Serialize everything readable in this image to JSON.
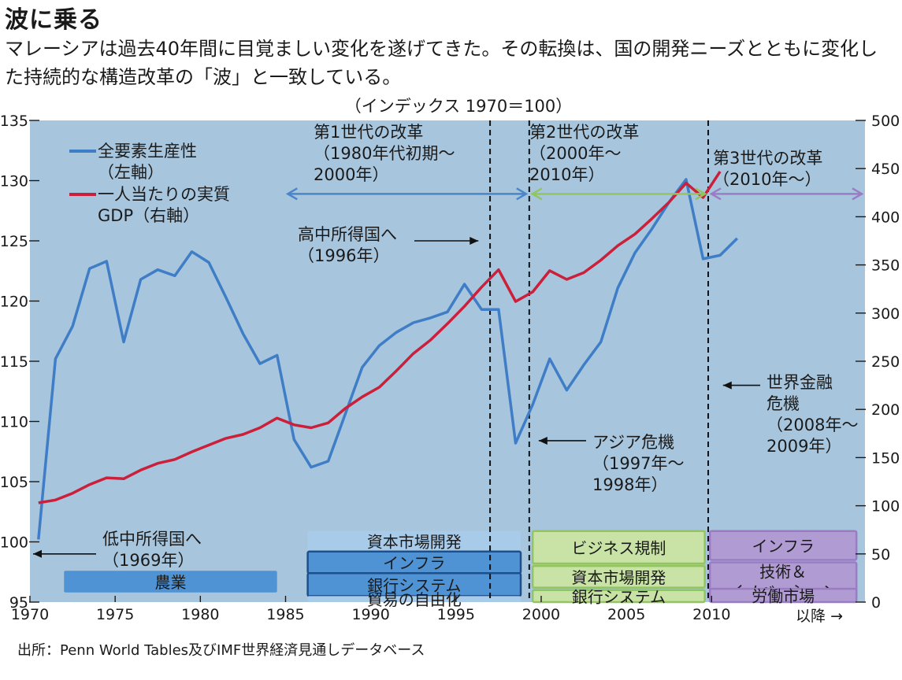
{
  "header": {
    "title": "波に乗る",
    "subtitle": "マレーシアは過去40年間に目覚ましい変化を遂げてきた。その転換は、国の開発ニーズとともに変化した持続的な構造改革の「波」と一致している。"
  },
  "source": "出所：Penn World Tables及びIMF世界経済見通しデータベース",
  "chart_data": {
    "type": "line",
    "unit_label": "（インデックス 1970＝100）",
    "x_ticks": [
      "1970",
      "1975",
      "1980",
      "1985",
      "1990",
      "1995",
      "2000",
      "2005",
      "2010",
      "以降 →"
    ],
    "xlim": [
      1970,
      2019
    ],
    "y_left": {
      "ylim": [
        95,
        135
      ],
      "ticks": [
        "95",
        "100",
        "105",
        "110",
        "115",
        "120",
        "125",
        "130",
        "135"
      ]
    },
    "y_right": {
      "ylim": [
        0,
        500
      ],
      "ticks": [
        "0",
        "50",
        "100",
        "150",
        "200",
        "250",
        "300",
        "350",
        "400",
        "450",
        "500"
      ]
    },
    "legend": {
      "position": "top-left",
      "items": [
        {
          "label": "全要素生産性",
          "label2": "（左軸）",
          "color": "#3f7ec6"
        },
        {
          "label": "一人当たりの実質",
          "label2": "GDP（右軸）",
          "color": "#cc1f3a"
        }
      ]
    },
    "series": [
      {
        "name": "全要素生産性",
        "axis": "left",
        "color": "#3f7ec6",
        "x": [
          1970.5,
          1971.5,
          1972.5,
          1973.5,
          1974.5,
          1975.5,
          1976.5,
          1977.5,
          1978.5,
          1979.5,
          1980.5,
          1981.5,
          1982.5,
          1983.5,
          1984.5,
          1985.5,
          1986.5,
          1987.5,
          1988.5,
          1989.5,
          1990.5,
          1991.5,
          1992.5,
          1993.5,
          1994.5,
          1995.5,
          1996.5,
          1997.5,
          1998.5,
          1999.5,
          2000.5,
          2001.5,
          2002.5,
          2003.5,
          2004.5,
          2005.5,
          2006.5,
          2007.5,
          2008.5,
          2009.5,
          2010.5,
          2011.5
        ],
        "values": [
          100.2,
          115.2,
          117.9,
          122.7,
          123.3,
          116.6,
          121.8,
          122.6,
          122.1,
          124.1,
          123.2,
          120.3,
          117.3,
          114.8,
          115.5,
          108.5,
          106.2,
          106.7,
          110.6,
          114.5,
          116.3,
          117.4,
          118.2,
          118.6,
          119.1,
          121.4,
          119.3,
          119.3,
          108.2,
          111.4,
          115.2,
          112.6,
          114.7,
          116.6,
          121.1,
          124.0,
          126.0,
          128.2,
          130.1,
          123.5,
          123.8,
          125.2
        ]
      },
      {
        "name": "一人当たりの実質GDP",
        "axis": "right",
        "color": "#cc1f3a",
        "x": [
          1970.5,
          1971.5,
          1972.5,
          1973.5,
          1974.5,
          1975.5,
          1976.5,
          1977.5,
          1978.5,
          1979.5,
          1980.5,
          1981.5,
          1982.5,
          1983.5,
          1984.5,
          1985.5,
          1986.5,
          1987.5,
          1988.5,
          1989.5,
          1990.5,
          1991.5,
          1992.5,
          1993.5,
          1994.5,
          1995.5,
          1996.5,
          1997.5,
          1998.5,
          1999.5,
          2000.5,
          2001.5,
          2002.5,
          2003.5,
          2004.5,
          2005.5,
          2006.5,
          2007.5,
          2008.5,
          2009.5,
          2010.5
        ],
        "values": [
          103,
          106,
          113,
          122,
          129,
          128,
          137,
          144,
          148,
          156,
          163,
          170,
          174,
          181,
          191,
          184,
          181,
          186,
          201,
          213,
          223,
          240,
          258,
          272,
          289,
          307,
          327,
          345,
          312,
          322,
          344,
          335,
          342,
          355,
          370,
          382,
          398,
          415,
          435,
          420,
          447
        ]
      }
    ],
    "reform_dividers": [
      1997,
      1999.3,
      2009.8
    ],
    "reforms": [
      {
        "label": "第1世代の改革",
        "period": "（1980年代初期〜",
        "period2": "2000年）",
        "from": 1985.5,
        "to": 1999.3,
        "color": "#4a86c8"
      },
      {
        "label": "第2世代の改革",
        "period": "（2000年〜",
        "period2": "2010年）",
        "from": 1999.3,
        "to": 2009.8,
        "color": "#92c55f"
      },
      {
        "label": "第3世代の改革",
        "period": "（2010年〜）",
        "from": 2009.8,
        "to": 2019,
        "color": "#9b7cc4"
      }
    ],
    "annotations": [
      {
        "text": "低中所得国へ",
        "text2": "（1969年）",
        "x": 1969,
        "value": 99
      },
      {
        "text": "高中所得国へ",
        "text2": "（1996年）",
        "x": 1996.5,
        "value": 125
      },
      {
        "text": "アジア危機",
        "text2": "（1997年〜",
        "text3": "1998年）",
        "x": 1999.3,
        "value": 108.4
      },
      {
        "text": "世界金融",
        "text2": "危機",
        "text3": "（2008年〜",
        "text4": "2009年）",
        "x": 2010.3,
        "value": 113
      }
    ],
    "sector_boxes": [
      {
        "label": "農業",
        "from": 1972,
        "to": 1984.5,
        "top": 97.6,
        "bottom": 95.8,
        "fill": "#4f93d4",
        "stroke": "none"
      },
      {
        "label": "資本市場開発",
        "from": 1986.3,
        "to": 1998.8,
        "top": 100.9,
        "bottom": 99.2,
        "fill": "#a9cbea",
        "stroke": "none"
      },
      {
        "label": "インフラ",
        "from": 1986.3,
        "to": 1998.8,
        "top": 99.2,
        "bottom": 97.4,
        "fill": "#4f93d4",
        "stroke": "#1f4f8a"
      },
      {
        "label": "銀行システム",
        "from": 1986.3,
        "to": 1998.8,
        "top": 97.4,
        "bottom": 95.5,
        "fill": "#4f93d4",
        "stroke": "#1f4f8a"
      },
      {
        "label": "貿易の自由化",
        "from": 1986.3,
        "to": 1998.8,
        "top": 95.5,
        "bottom": 95.0,
        "fill": "#a9cbea",
        "stroke": "none"
      },
      {
        "label": "ビジネス規制",
        "from": 1999.5,
        "to": 2009.6,
        "top": 100.9,
        "bottom": 98.2,
        "fill": "#c9e3a6",
        "stroke": "#92c55f"
      },
      {
        "label": "資本市場開発",
        "from": 1999.5,
        "to": 2009.6,
        "top": 98.0,
        "bottom": 96.2,
        "fill": "#c9e3a6",
        "stroke": "#92c55f"
      },
      {
        "label": "銀行システム",
        "from": 1999.5,
        "to": 2009.6,
        "top": 96.0,
        "bottom": 95.0,
        "fill": "#c9e3a6",
        "stroke": "#92c55f"
      },
      {
        "label": "インフラ",
        "from": 2009.9,
        "to": 2018.5,
        "top": 100.9,
        "bottom": 98.5,
        "fill": "#b09bd3",
        "stroke": "#9b7cc4"
      },
      {
        "label": "技術＆",
        "label2": "イノベーション",
        "from": 2009.9,
        "to": 2018.5,
        "top": 98.3,
        "bottom": 95.3,
        "fill": "#b09bd3",
        "stroke": "#9b7cc4"
      },
      {
        "label": "労働市場",
        "from": 2009.9,
        "to": 2018.5,
        "top": 96.1,
        "bottom": 95.0,
        "fill": "#b09bd3",
        "stroke": "#9b7cc4"
      }
    ]
  }
}
